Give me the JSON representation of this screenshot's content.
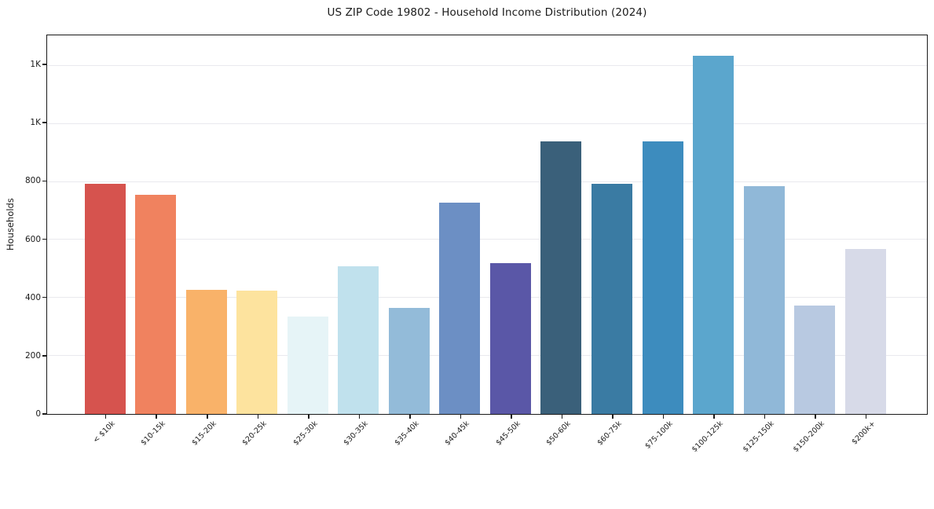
{
  "chart_data": {
    "type": "bar",
    "title": "US ZIP Code 19802 - Household Income Distribution (2024)",
    "xlabel": "",
    "ylabel": "Households",
    "ylim": [
      0,
      1300
    ],
    "grid": "horizontal gridlines at each y tick",
    "legend": "none",
    "categories": [
      "< $10k",
      "$10-15k",
      "$15-20k",
      "$20-25k",
      "$25-30k",
      "$30-35k",
      "$35-40k",
      "$40-45k",
      "$45-50k",
      "$50-60k",
      "$60-75k",
      "$75-100k",
      "$100-125k",
      "$125-150k",
      "$150-200k",
      "$200k+"
    ],
    "values": [
      794,
      757,
      429,
      424,
      336,
      509,
      367,
      728,
      521,
      940,
      794,
      940,
      1235,
      786,
      374,
      569
    ],
    "bar_colors": [
      "#d6534e",
      "#f0825f",
      "#f9b269",
      "#fde39e",
      "#e6f4f7",
      "#c0e1ed",
      "#93bbd9",
      "#6c8fc4",
      "#5a57a7",
      "#3a607a",
      "#3a7ba3",
      "#3d8cbe",
      "#5ba6cd",
      "#90b8d8",
      "#b8c9e1",
      "#d7dae8"
    ],
    "y_ticks": [
      {
        "value": 0,
        "label": "0"
      },
      {
        "value": 200,
        "label": "200"
      },
      {
        "value": 400,
        "label": "400"
      },
      {
        "value": 600,
        "label": "600"
      },
      {
        "value": 800,
        "label": "800"
      },
      {
        "value": 1000,
        "label": "1K"
      },
      {
        "value": 1200,
        "label": "1K"
      }
    ]
  },
  "colors": {
    "background": "#ffffff",
    "spine": "#1a1a1a",
    "gridline": "#e9e9ee",
    "text": "#1a1a1a"
  }
}
